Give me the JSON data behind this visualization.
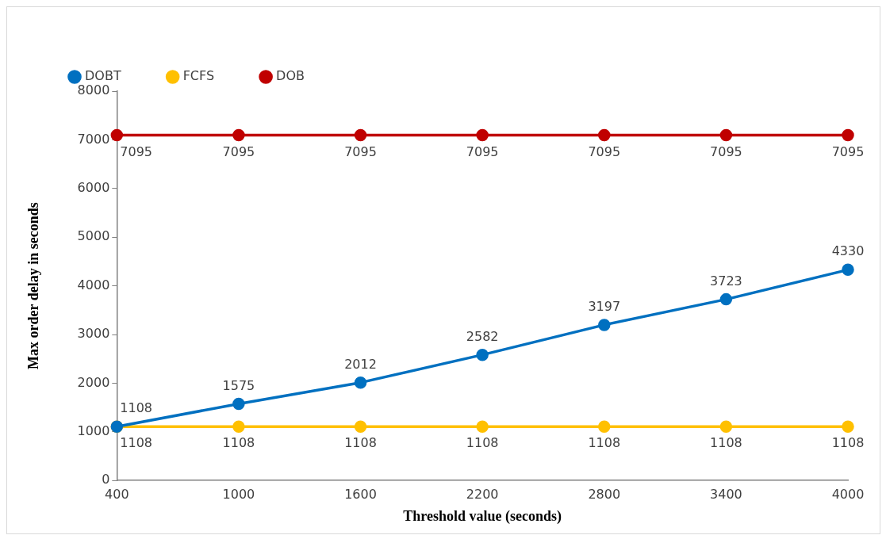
{
  "chart_data": {
    "type": "line",
    "xlabel": "Threshold value (seconds)",
    "ylabel": "Max order delay in seconds",
    "categories": [
      "400",
      "1000",
      "1600",
      "2200",
      "2800",
      "3400",
      "4000"
    ],
    "series": [
      {
        "name": "DOBT",
        "color": "#0070c0",
        "values": [
          1108,
          1575,
          2012,
          2582,
          3197,
          3723,
          4330
        ]
      },
      {
        "name": "FCFS",
        "color": "#ffc000",
        "values": [
          1108,
          1108,
          1108,
          1108,
          1108,
          1108,
          1108
        ]
      },
      {
        "name": "DOB",
        "color": "#c00000",
        "values": [
          7095,
          7095,
          7095,
          7095,
          7095,
          7095,
          7095
        ]
      }
    ],
    "ylim": [
      0,
      8000
    ],
    "yticks": [
      0,
      1000,
      2000,
      3000,
      4000,
      5000,
      6000,
      7000,
      8000
    ],
    "grid": false,
    "legend": "top left",
    "marker": "circle",
    "line_style": "solid",
    "data_labels": true
  }
}
